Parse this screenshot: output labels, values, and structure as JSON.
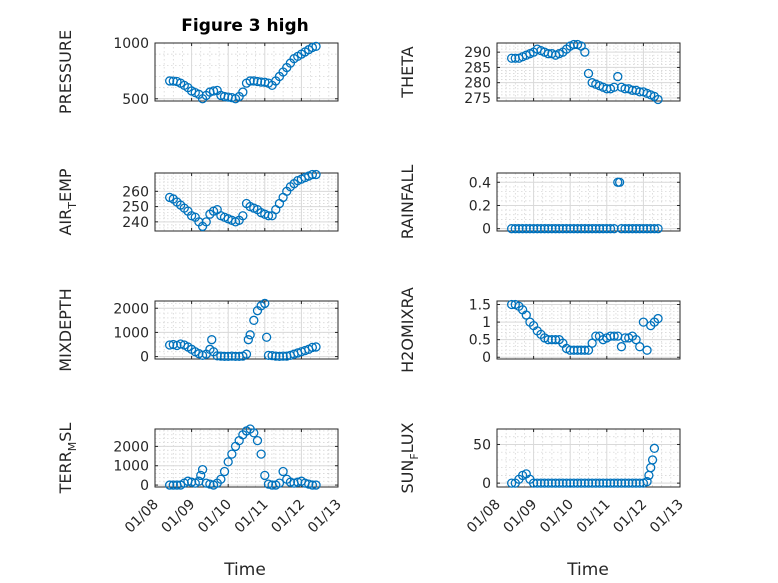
{
  "figure": {
    "title": "Figure 3 high",
    "xlabel": "Time",
    "x_ticks": [
      "01/08",
      "01/09",
      "01/10",
      "01/11",
      "01/12",
      "01/13"
    ]
  },
  "colors": {
    "marker": "#0072bd",
    "axis": "#262626",
    "grid": "#d9d9d9"
  },
  "chart_data": [
    {
      "type": "scatter",
      "title": "Figure 3 high",
      "ylabel": "PRESSURE",
      "xlim": [
        8,
        13
      ],
      "ylim": [
        480,
        1000
      ],
      "yticks": [
        500,
        1000
      ],
      "x": [
        8.4,
        8.5,
        8.6,
        8.7,
        8.8,
        8.9,
        9.0,
        9.1,
        9.2,
        9.3,
        9.4,
        9.5,
        9.6,
        9.7,
        9.8,
        9.9,
        10.0,
        10.1,
        10.2,
        10.3,
        10.4,
        10.5,
        10.6,
        10.7,
        10.8,
        10.9,
        11.0,
        11.1,
        11.2,
        11.3,
        11.4,
        11.5,
        11.6,
        11.7,
        11.8,
        11.9,
        12.0,
        12.1,
        12.2,
        12.3,
        12.4
      ],
      "y": [
        660,
        658,
        655,
        640,
        620,
        600,
        570,
        555,
        540,
        500,
        530,
        560,
        570,
        575,
        530,
        520,
        515,
        510,
        500,
        520,
        560,
        640,
        660,
        660,
        655,
        650,
        648,
        640,
        620,
        660,
        700,
        740,
        780,
        820,
        860,
        880,
        900,
        920,
        940,
        960,
        970
      ]
    },
    {
      "type": "scatter",
      "ylabel": "THETA",
      "xlim": [
        8,
        13
      ],
      "ylim": [
        274,
        293
      ],
      "yticks": [
        275,
        280,
        285,
        290
      ],
      "x": [
        8.4,
        8.5,
        8.6,
        8.7,
        8.8,
        8.9,
        9.0,
        9.1,
        9.2,
        9.3,
        9.4,
        9.5,
        9.6,
        9.7,
        9.8,
        9.9,
        10.0,
        10.1,
        10.2,
        10.3,
        10.4,
        10.5,
        10.6,
        10.7,
        10.8,
        10.9,
        11.0,
        11.1,
        11.2,
        11.3,
        11.4,
        11.5,
        11.6,
        11.7,
        11.8,
        11.9,
        12.0,
        12.1,
        12.2,
        12.3,
        12.4
      ],
      "y": [
        288,
        288,
        288,
        288.5,
        289,
        289.5,
        290,
        291,
        290.5,
        290,
        289.5,
        289.5,
        289,
        289.5,
        290,
        291,
        292,
        292.5,
        292.5,
        292,
        290,
        283,
        280,
        279.5,
        279,
        278.5,
        278,
        278,
        278.5,
        282,
        278.5,
        278,
        278,
        277.5,
        277.5,
        277,
        277,
        276.5,
        276,
        275.5,
        274.5
      ]
    },
    {
      "type": "scatter",
      "ylabel": "AIR_TEMP",
      "xlim": [
        8,
        13
      ],
      "ylim": [
        234,
        272
      ],
      "yticks": [
        240,
        250,
        260
      ],
      "x": [
        8.4,
        8.5,
        8.6,
        8.7,
        8.8,
        8.9,
        9.0,
        9.1,
        9.2,
        9.3,
        9.4,
        9.5,
        9.6,
        9.7,
        9.8,
        9.9,
        10.0,
        10.1,
        10.2,
        10.3,
        10.4,
        10.5,
        10.6,
        10.7,
        10.8,
        10.9,
        11.0,
        11.1,
        11.2,
        11.3,
        11.4,
        11.5,
        11.6,
        11.7,
        11.8,
        11.9,
        12.0,
        12.1,
        12.2,
        12.3,
        12.4
      ],
      "y": [
        256,
        255,
        253,
        251,
        249,
        247,
        244,
        243,
        240,
        237,
        240,
        245,
        247,
        248,
        244,
        243,
        242,
        241,
        240,
        241,
        244,
        252,
        250,
        249,
        248,
        246,
        245,
        244,
        244,
        248,
        252,
        256,
        260,
        263,
        265,
        267,
        268,
        269,
        270,
        271,
        271
      ]
    },
    {
      "type": "scatter",
      "ylabel": "RAINFALL",
      "xlim": [
        8,
        13
      ],
      "ylim": [
        -0.02,
        0.48
      ],
      "yticks": [
        0,
        0.2,
        0.4
      ],
      "x": [
        8.4,
        8.5,
        8.6,
        8.7,
        8.8,
        8.9,
        9.0,
        9.1,
        9.2,
        9.3,
        9.4,
        9.5,
        9.6,
        9.7,
        9.8,
        9.9,
        10.0,
        10.1,
        10.2,
        10.3,
        10.4,
        10.5,
        10.6,
        10.7,
        10.8,
        10.9,
        11.0,
        11.1,
        11.2,
        11.3,
        11.35,
        11.4,
        11.5,
        11.6,
        11.7,
        11.8,
        11.9,
        12.0,
        12.1,
        12.2,
        12.3,
        12.4
      ],
      "y": [
        0,
        0,
        0,
        0,
        0,
        0,
        0,
        0,
        0,
        0,
        0,
        0,
        0,
        0,
        0,
        0,
        0,
        0,
        0,
        0,
        0,
        0,
        0,
        0,
        0,
        0,
        0,
        0,
        0,
        0.4,
        0.4,
        0,
        0,
        0,
        0,
        0,
        0,
        0,
        0,
        0,
        0,
        0
      ]
    },
    {
      "type": "scatter",
      "ylabel": "MIXDEPTH",
      "xlim": [
        8,
        13
      ],
      "ylim": [
        -100,
        2300
      ],
      "yticks": [
        0,
        1000,
        2000
      ],
      "x": [
        8.4,
        8.5,
        8.6,
        8.7,
        8.8,
        8.9,
        9.0,
        9.1,
        9.2,
        9.3,
        9.4,
        9.5,
        9.55,
        9.6,
        9.7,
        9.8,
        9.9,
        10.0,
        10.1,
        10.2,
        10.3,
        10.4,
        10.5,
        10.55,
        10.6,
        10.7,
        10.8,
        10.9,
        11.0,
        11.05,
        11.1,
        11.2,
        11.3,
        11.4,
        11.5,
        11.6,
        11.7,
        11.8,
        11.9,
        12.0,
        12.1,
        12.2,
        12.3,
        12.4
      ],
      "y": [
        480,
        500,
        460,
        520,
        480,
        400,
        300,
        200,
        120,
        50,
        100,
        300,
        700,
        200,
        30,
        20,
        10,
        10,
        20,
        10,
        10,
        20,
        100,
        700,
        900,
        1500,
        1900,
        2100,
        2200,
        800,
        50,
        40,
        20,
        10,
        20,
        20,
        50,
        100,
        150,
        200,
        250,
        300,
        380,
        400
      ]
    },
    {
      "type": "scatter",
      "ylabel": "H2OMIXRA",
      "xlim": [
        8,
        13
      ],
      "ylim": [
        -0.05,
        1.6
      ],
      "yticks": [
        0,
        0.5,
        1,
        1.5
      ],
      "yticklabels": [
        "0",
        "0.5",
        "1",
        "1.5"
      ],
      "x": [
        8.4,
        8.5,
        8.6,
        8.7,
        8.8,
        8.9,
        9.0,
        9.1,
        9.2,
        9.3,
        9.4,
        9.5,
        9.6,
        9.7,
        9.8,
        9.9,
        10.0,
        10.1,
        10.2,
        10.3,
        10.4,
        10.5,
        10.6,
        10.7,
        10.8,
        10.9,
        11.0,
        11.1,
        11.2,
        11.3,
        11.4,
        11.5,
        11.6,
        11.7,
        11.8,
        11.9,
        12.0,
        12.1,
        12.2,
        12.3,
        12.4
      ],
      "y": [
        1.5,
        1.5,
        1.45,
        1.35,
        1.2,
        1.0,
        0.9,
        0.75,
        0.65,
        0.55,
        0.5,
        0.5,
        0.5,
        0.5,
        0.4,
        0.25,
        0.2,
        0.2,
        0.2,
        0.2,
        0.2,
        0.2,
        0.4,
        0.6,
        0.6,
        0.5,
        0.55,
        0.6,
        0.6,
        0.6,
        0.3,
        0.55,
        0.55,
        0.6,
        0.5,
        0.3,
        1.0,
        0.2,
        0.9,
        1.0,
        1.1
      ]
    },
    {
      "type": "scatter",
      "ylabel": "TERR_MSL",
      "xlim": [
        8,
        13
      ],
      "ylim": [
        -100,
        2900
      ],
      "yticks": [
        0,
        1000,
        2000
      ],
      "x": [
        8.4,
        8.5,
        8.6,
        8.7,
        8.8,
        8.9,
        9.0,
        9.1,
        9.2,
        9.25,
        9.3,
        9.4,
        9.5,
        9.6,
        9.7,
        9.8,
        9.9,
        10.0,
        10.1,
        10.2,
        10.3,
        10.4,
        10.5,
        10.6,
        10.7,
        10.8,
        10.9,
        11.0,
        11.1,
        11.2,
        11.3,
        11.4,
        11.5,
        11.6,
        11.7,
        11.8,
        11.9,
        12.0,
        12.1,
        12.2,
        12.3,
        12.4
      ],
      "y": [
        0,
        0,
        0,
        0,
        100,
        200,
        150,
        100,
        200,
        500,
        800,
        100,
        50,
        0,
        100,
        300,
        700,
        1200,
        1600,
        2000,
        2300,
        2600,
        2800,
        2900,
        2700,
        2300,
        1600,
        500,
        50,
        0,
        0,
        100,
        700,
        300,
        150,
        100,
        150,
        200,
        100,
        50,
        0,
        0
      ]
    },
    {
      "type": "scatter",
      "ylabel": "SUN_FLUX",
      "xlim": [
        8,
        13
      ],
      "ylim": [
        -5,
        70
      ],
      "yticks": [
        0,
        50
      ],
      "x": [
        8.4,
        8.5,
        8.6,
        8.7,
        8.8,
        8.9,
        9.0,
        9.1,
        9.2,
        9.3,
        9.4,
        9.5,
        9.6,
        9.7,
        9.8,
        9.9,
        10.0,
        10.1,
        10.2,
        10.3,
        10.4,
        10.5,
        10.6,
        10.7,
        10.8,
        10.9,
        11.0,
        11.1,
        11.2,
        11.3,
        11.4,
        11.5,
        11.6,
        11.7,
        11.8,
        11.9,
        12.0,
        12.1,
        12.15,
        12.2,
        12.25,
        12.3
      ],
      "y": [
        0,
        0,
        5,
        10,
        12,
        5,
        0,
        0,
        0,
        0,
        0,
        0,
        0,
        0,
        0,
        0,
        0,
        0,
        0,
        0,
        0,
        0,
        0,
        0,
        0,
        0,
        0,
        0,
        0,
        0,
        0,
        0,
        0,
        0,
        0,
        0,
        0,
        2,
        10,
        20,
        30,
        45
      ]
    }
  ]
}
